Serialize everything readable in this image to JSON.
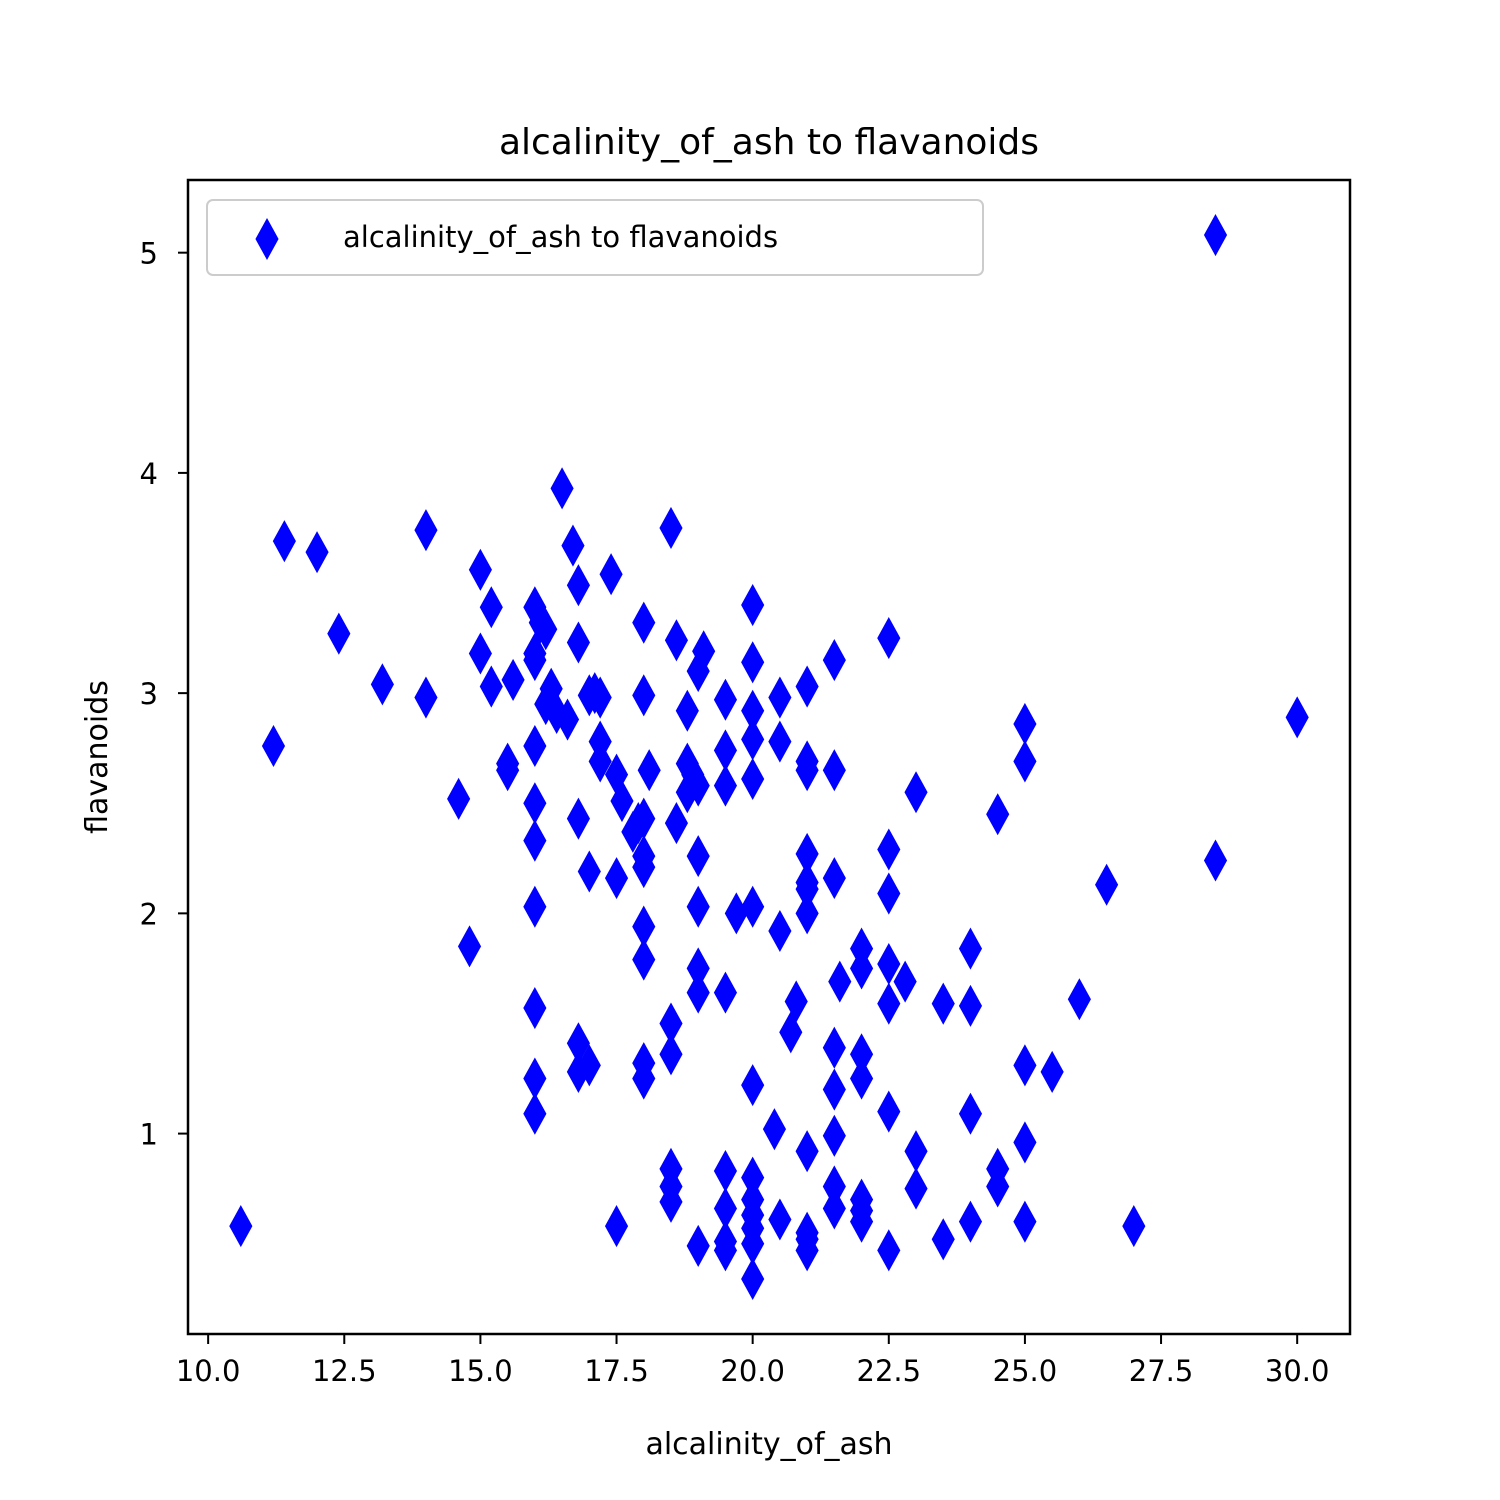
{
  "chart_data": {
    "type": "scatter",
    "title": "alcalinity_of_ash to flavanoids",
    "xlabel": "alcalinity_of_ash",
    "ylabel": "flavanoids",
    "xlim": [
      9.63,
      30.97
    ],
    "ylim": [
      0.09,
      5.33
    ],
    "xticks": [
      10.0,
      12.5,
      15.0,
      17.5,
      20.0,
      22.5,
      25.0,
      27.5,
      30.0
    ],
    "xtick_labels": [
      "10.0",
      "12.5",
      "15.0",
      "17.5",
      "20.0",
      "22.5",
      "25.0",
      "27.5",
      "30.0"
    ],
    "yticks": [
      1,
      2,
      3,
      4,
      5
    ],
    "ytick_labels": [
      "1",
      "2",
      "3",
      "4",
      "5"
    ],
    "grid": false,
    "legend": {
      "position": "upper-left"
    },
    "marker": "thin-diamond",
    "color": "#0000ff",
    "series": [
      {
        "name": "alcalinity_of_ash to flavanoids",
        "points": [
          [
            10.6,
            0.58
          ],
          [
            11.2,
            2.76
          ],
          [
            11.4,
            3.69
          ],
          [
            12.0,
            3.64
          ],
          [
            12.4,
            3.27
          ],
          [
            13.2,
            3.04
          ],
          [
            14.0,
            3.74
          ],
          [
            14.0,
            2.98
          ],
          [
            14.6,
            2.52
          ],
          [
            14.8,
            1.85
          ],
          [
            15.0,
            3.56
          ],
          [
            15.0,
            3.18
          ],
          [
            15.2,
            3.39
          ],
          [
            15.2,
            3.03
          ],
          [
            15.5,
            2.68
          ],
          [
            15.5,
            2.65
          ],
          [
            15.6,
            3.06
          ],
          [
            16.0,
            3.39
          ],
          [
            16.0,
            3.15
          ],
          [
            16.0,
            3.18
          ],
          [
            16.0,
            2.76
          ],
          [
            16.0,
            2.5
          ],
          [
            16.0,
            2.33
          ],
          [
            16.0,
            2.03
          ],
          [
            16.0,
            1.57
          ],
          [
            16.0,
            1.25
          ],
          [
            16.0,
            1.09
          ],
          [
            16.1,
            3.32
          ],
          [
            16.2,
            3.29
          ],
          [
            16.2,
            2.95
          ],
          [
            16.3,
            3.02
          ],
          [
            16.4,
            2.91
          ],
          [
            16.5,
            3.93
          ],
          [
            16.6,
            2.88
          ],
          [
            16.7,
            3.67
          ],
          [
            16.8,
            3.49
          ],
          [
            16.8,
            3.23
          ],
          [
            16.8,
            2.43
          ],
          [
            16.8,
            1.41
          ],
          [
            16.8,
            1.28
          ],
          [
            17.0,
            2.99
          ],
          [
            17.0,
            2.19
          ],
          [
            17.0,
            1.31
          ],
          [
            17.1,
            3.0
          ],
          [
            17.2,
            2.98
          ],
          [
            17.2,
            2.78
          ],
          [
            17.2,
            2.69
          ],
          [
            17.4,
            3.54
          ],
          [
            17.5,
            2.63
          ],
          [
            17.5,
            2.16
          ],
          [
            17.5,
            0.58
          ],
          [
            17.6,
            2.51
          ],
          [
            17.8,
            2.37
          ],
          [
            17.9,
            2.41
          ],
          [
            18.0,
            3.32
          ],
          [
            18.0,
            2.99
          ],
          [
            18.0,
            2.43
          ],
          [
            18.0,
            2.26
          ],
          [
            18.0,
            2.21
          ],
          [
            18.0,
            1.94
          ],
          [
            18.0,
            1.79
          ],
          [
            18.0,
            1.32
          ],
          [
            18.0,
            1.25
          ],
          [
            18.1,
            2.65
          ],
          [
            18.5,
            3.75
          ],
          [
            18.5,
            1.5
          ],
          [
            18.5,
            1.36
          ],
          [
            18.5,
            0.84
          ],
          [
            18.5,
            0.76
          ],
          [
            18.5,
            0.69
          ],
          [
            18.6,
            3.24
          ],
          [
            18.6,
            2.41
          ],
          [
            18.8,
            2.92
          ],
          [
            18.8,
            2.55
          ],
          [
            18.8,
            2.68
          ],
          [
            18.9,
            2.63
          ],
          [
            19.0,
            3.1
          ],
          [
            19.0,
            2.58
          ],
          [
            19.0,
            2.26
          ],
          [
            19.0,
            2.03
          ],
          [
            19.0,
            1.75
          ],
          [
            19.0,
            1.64
          ],
          [
            19.0,
            0.49
          ],
          [
            19.1,
            3.19
          ],
          [
            19.5,
            2.97
          ],
          [
            19.5,
            2.74
          ],
          [
            19.5,
            2.58
          ],
          [
            19.5,
            1.64
          ],
          [
            19.5,
            0.83
          ],
          [
            19.5,
            0.66
          ],
          [
            19.5,
            0.51
          ],
          [
            19.5,
            0.47
          ],
          [
            19.7,
            2.0
          ],
          [
            20.0,
            3.4
          ],
          [
            20.0,
            3.14
          ],
          [
            20.0,
            2.92
          ],
          [
            20.0,
            2.79
          ],
          [
            20.0,
            2.61
          ],
          [
            20.0,
            2.03
          ],
          [
            20.0,
            1.22
          ],
          [
            20.0,
            0.8
          ],
          [
            20.0,
            0.7
          ],
          [
            20.0,
            0.63
          ],
          [
            20.0,
            0.57
          ],
          [
            20.0,
            0.5
          ],
          [
            20.0,
            0.34
          ],
          [
            20.4,
            1.02
          ],
          [
            20.5,
            2.98
          ],
          [
            20.5,
            2.78
          ],
          [
            20.5,
            1.92
          ],
          [
            20.5,
            0.61
          ],
          [
            20.7,
            1.46
          ],
          [
            20.8,
            1.6
          ],
          [
            21.0,
            3.03
          ],
          [
            21.0,
            2.69
          ],
          [
            21.0,
            2.65
          ],
          [
            21.0,
            2.27
          ],
          [
            21.0,
            2.14
          ],
          [
            21.0,
            2.11
          ],
          [
            21.0,
            2.0
          ],
          [
            21.0,
            0.92
          ],
          [
            21.0,
            0.55
          ],
          [
            21.0,
            0.52
          ],
          [
            21.0,
            0.47
          ],
          [
            21.5,
            3.15
          ],
          [
            21.5,
            2.65
          ],
          [
            21.5,
            2.16
          ],
          [
            21.5,
            1.39
          ],
          [
            21.5,
            1.2
          ],
          [
            21.5,
            0.99
          ],
          [
            21.5,
            0.76
          ],
          [
            21.5,
            0.66
          ],
          [
            21.6,
            1.69
          ],
          [
            22.0,
            1.84
          ],
          [
            22.0,
            1.75
          ],
          [
            22.0,
            1.36
          ],
          [
            22.0,
            1.25
          ],
          [
            22.0,
            0.7
          ],
          [
            22.0,
            0.65
          ],
          [
            22.0,
            0.6
          ],
          [
            22.5,
            3.25
          ],
          [
            22.5,
            2.29
          ],
          [
            22.5,
            2.09
          ],
          [
            22.5,
            1.77
          ],
          [
            22.5,
            1.59
          ],
          [
            22.5,
            1.1
          ],
          [
            22.5,
            0.47
          ],
          [
            22.8,
            1.69
          ],
          [
            23.0,
            2.55
          ],
          [
            23.0,
            0.92
          ],
          [
            23.0,
            0.75
          ],
          [
            23.5,
            1.59
          ],
          [
            23.5,
            0.52
          ],
          [
            24.0,
            1.84
          ],
          [
            24.0,
            1.58
          ],
          [
            24.0,
            1.09
          ],
          [
            24.0,
            0.6
          ],
          [
            24.5,
            2.45
          ],
          [
            24.5,
            0.84
          ],
          [
            24.5,
            0.76
          ],
          [
            25.0,
            2.86
          ],
          [
            25.0,
            2.69
          ],
          [
            25.0,
            1.31
          ],
          [
            25.0,
            0.96
          ],
          [
            25.0,
            0.6
          ],
          [
            25.5,
            1.28
          ],
          [
            26.0,
            1.61
          ],
          [
            26.5,
            2.13
          ],
          [
            27.0,
            0.58
          ],
          [
            28.5,
            5.08
          ],
          [
            28.5,
            2.24
          ],
          [
            30.0,
            2.89
          ]
        ]
      }
    ]
  }
}
